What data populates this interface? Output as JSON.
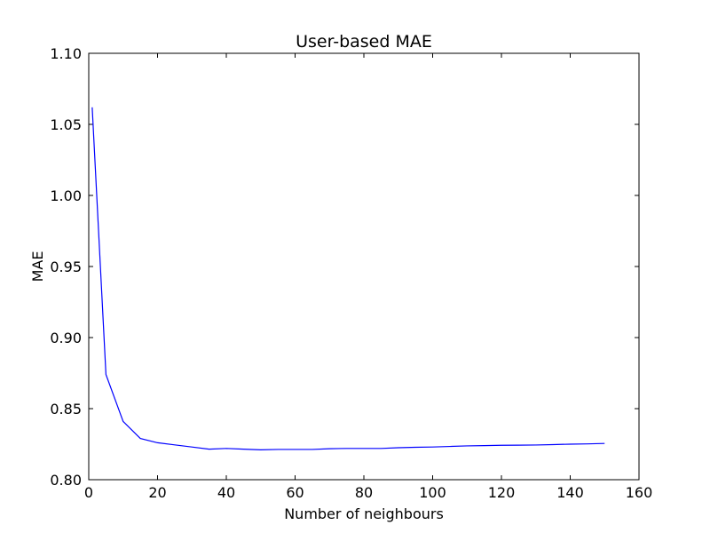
{
  "chart_data": {
    "type": "line",
    "title": "User-based MAE",
    "xlabel": "Number of neighbours",
    "ylabel": "MAE",
    "xlim": [
      0,
      160
    ],
    "ylim": [
      0.8,
      1.1
    ],
    "xticks": [
      "0",
      "20",
      "40",
      "60",
      "80",
      "100",
      "120",
      "140",
      "160"
    ],
    "yticks": [
      "0.80",
      "0.85",
      "0.90",
      "0.95",
      "1.00",
      "1.05",
      "1.10"
    ],
    "grid": false,
    "series": [
      {
        "color": "#0000ff",
        "x": [
          1,
          5,
          10,
          15,
          20,
          25,
          30,
          35,
          40,
          45,
          50,
          55,
          60,
          65,
          70,
          75,
          80,
          85,
          90,
          95,
          100,
          105,
          110,
          115,
          120,
          125,
          130,
          135,
          140,
          145,
          150
        ],
        "y": [
          1.062,
          0.874,
          0.841,
          0.829,
          0.826,
          0.8245,
          0.823,
          0.8215,
          0.822,
          0.8215,
          0.821,
          0.8213,
          0.8213,
          0.8213,
          0.8218,
          0.822,
          0.822,
          0.822,
          0.8225,
          0.8228,
          0.823,
          0.8234,
          0.8238,
          0.824,
          0.8242,
          0.8243,
          0.8244,
          0.8247,
          0.825,
          0.8252,
          0.8255
        ]
      }
    ]
  }
}
